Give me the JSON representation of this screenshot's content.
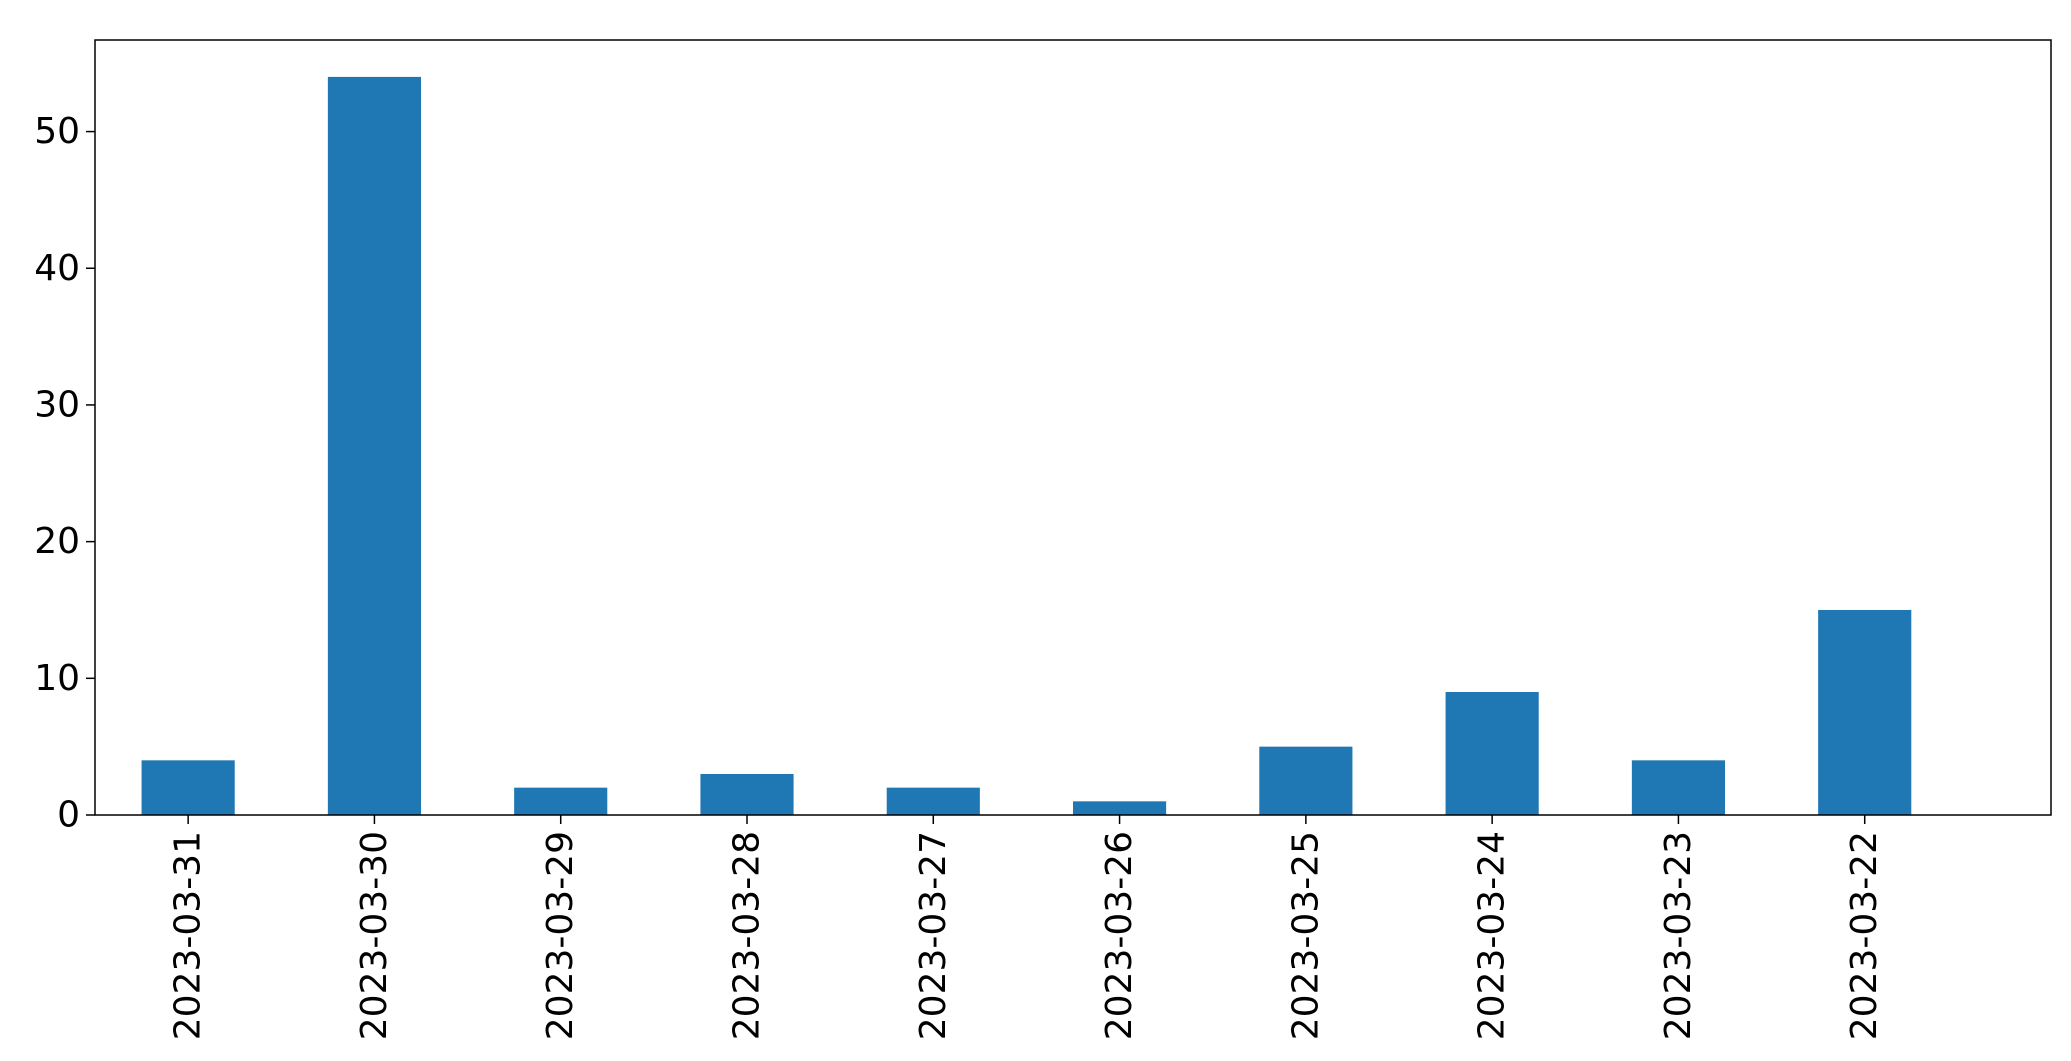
{
  "chart_data": {
    "type": "bar",
    "title": "",
    "xlabel": "",
    "ylabel": "",
    "categories": [
      "2023-03-31",
      "2023-03-30",
      "2023-03-29",
      "2023-03-28",
      "2023-03-27",
      "2023-03-26",
      "2023-03-25",
      "2023-03-24",
      "2023-03-23",
      "2023-03-22"
    ],
    "values": [
      4,
      54,
      2,
      3,
      2,
      1,
      5,
      9,
      4,
      15
    ],
    "ylim": [
      0,
      56.7
    ],
    "yticks": [
      0,
      10,
      20,
      30,
      40,
      50
    ],
    "grid": false,
    "legend": "none",
    "bar_color": "#1f77b4"
  }
}
